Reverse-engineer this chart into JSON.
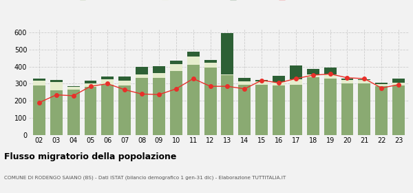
{
  "years": [
    "02",
    "03",
    "04",
    "05",
    "06",
    "07",
    "08",
    "09",
    "10",
    "11",
    "12",
    "13",
    "14",
    "15",
    "16",
    "17",
    "18",
    "19",
    "20",
    "21",
    "22",
    "23"
  ],
  "iscritti_altri_comuni": [
    290,
    260,
    265,
    280,
    295,
    290,
    335,
    335,
    375,
    410,
    395,
    350,
    295,
    295,
    290,
    295,
    340,
    330,
    300,
    300,
    285,
    290
  ],
  "iscritti_estero": [
    30,
    50,
    15,
    20,
    30,
    30,
    20,
    28,
    40,
    48,
    28,
    4,
    18,
    18,
    18,
    32,
    14,
    23,
    23,
    23,
    14,
    14
  ],
  "iscritti_altri": [
    12,
    12,
    4,
    18,
    18,
    22,
    42,
    38,
    18,
    28,
    14,
    240,
    22,
    8,
    38,
    80,
    32,
    42,
    8,
    4,
    8,
    28
  ],
  "cancellati": [
    190,
    235,
    230,
    285,
    300,
    265,
    240,
    237,
    270,
    330,
    285,
    285,
    270,
    320,
    305,
    330,
    350,
    357,
    335,
    330,
    275,
    295
  ],
  "color_altri_comuni": "#8aaa72",
  "color_estero": "#e5edcd",
  "color_altri": "#2d6035",
  "color_cancellati": "#e8302a",
  "ylim": [
    0,
    620
  ],
  "yticks": [
    0,
    100,
    200,
    300,
    400,
    500,
    600
  ],
  "title": "Flusso migratorio della popolazione",
  "subtitle": "COMUNE DI RODENGO SAIANO (BS) - Dati ISTAT (bilancio demografico 1 gen-31 dic) - Elaborazione TUTTITALIA.IT",
  "bg_color": "#f2f2f2",
  "grid_color": "#cccccc"
}
